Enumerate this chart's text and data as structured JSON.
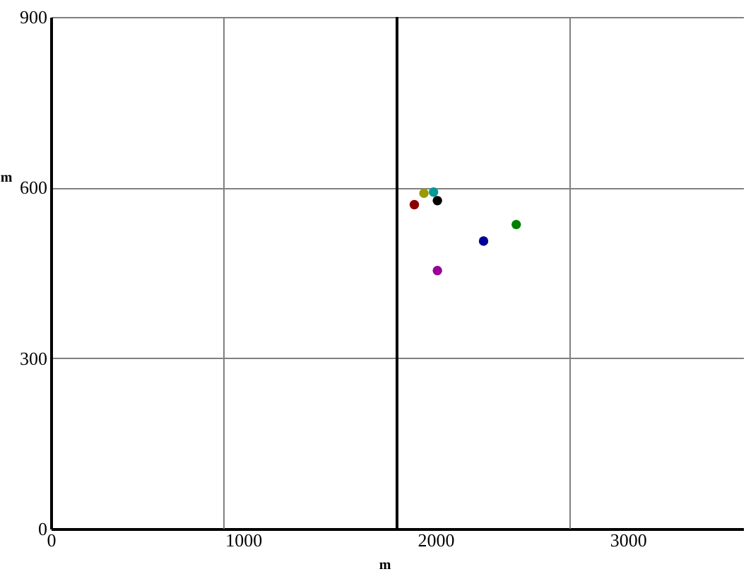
{
  "chart_data": {
    "type": "scatter",
    "xlabel": "m",
    "ylabel": "m",
    "x": [
      1890,
      1940,
      1990,
      2010,
      2420,
      2250,
      2010
    ],
    "values": [
      570,
      590,
      592,
      577,
      535,
      506,
      454
    ],
    "colors": [
      "#8b0000",
      "#999900",
      "#009999",
      "#000000",
      "#008000",
      "#000099",
      "#990099"
    ],
    "xlim": [
      0,
      3600
    ],
    "xticks": [
      0,
      1000,
      2000,
      3000
    ],
    "ylim": [
      0,
      900
    ],
    "yticks": [
      0,
      300,
      600,
      900
    ],
    "grid": "y",
    "marker": "circle",
    "ref_lines": [
      {
        "axis": "x",
        "value": 900,
        "color": "#808080"
      },
      {
        "axis": "x",
        "value": 1800,
        "color": "#000000"
      },
      {
        "axis": "x",
        "value": 2700,
        "color": "#808080"
      }
    ]
  }
}
